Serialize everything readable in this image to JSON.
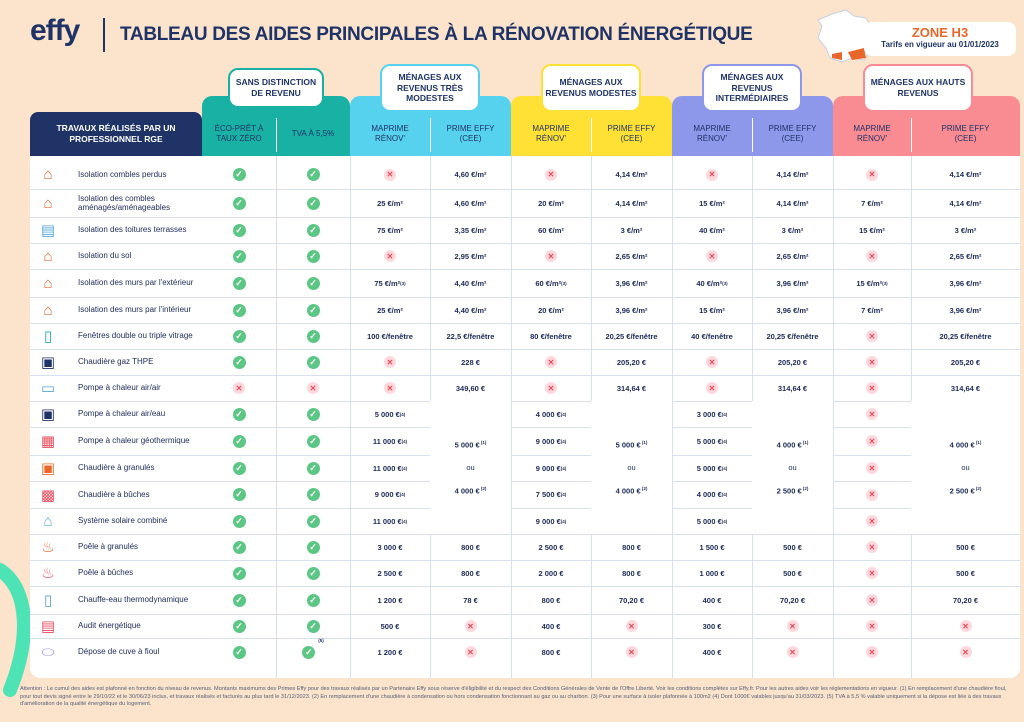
{
  "header": {
    "logo": "effy",
    "title": "TABLEAU DES AIDES PRINCIPALES À LA RÉNOVATION ÉNERGÉTIQUE",
    "zone": "ZONE H3",
    "zone_sub": "Tarifs en vigueur au 01/01/2023"
  },
  "colors": {
    "teal": "#19b1a4",
    "cyan": "#57d2ee",
    "yellow": "#ffe135",
    "purple": "#8d98ea",
    "pink": "#f98b92",
    "navy": "#1f3366",
    "check": "#5cc785",
    "cross": "#e94b5c"
  },
  "columns": {
    "works": "TRAVAUX RÉALISÉS PAR UN PROFESSIONNEL RGE",
    "groups": [
      "SANS DISTINCTION DE REVENU",
      "MÉNAGES AUX REVENUS TRÈS MODESTES",
      "MÉNAGES AUX REVENUS MODESTES",
      "MÉNAGES AUX REVENUS INTERMÉDIAIRES",
      "MÉNAGES AUX HAUTS REVENUS"
    ],
    "sub": [
      "ÉCO-PRÊT À TAUX ZÉRO",
      "TVA À 5,5%",
      "MAPRIME RÉNOV'",
      "PRIME EFFY (CEE)",
      "MAPRIME RÉNOV'",
      "PRIME EFFY (CEE)",
      "MAPRIME RÉNOV'",
      "PRIME EFFY (CEE)",
      "MAPRIME RÉNOV'",
      "PRIME EFFY (CEE)"
    ]
  },
  "rows": [
    {
      "label": "Isolation combles perdus",
      "icon": "attic-insulation-icon",
      "cells": [
        "ok",
        "ok",
        "no",
        "4,60 €/m²",
        "no",
        "4,14 €/m²",
        "no",
        "4,14 €/m²",
        "no",
        "4,14 €/m²"
      ]
    },
    {
      "label": "Isolation des combles aménagés/aménageables",
      "icon": "roof-insulation-icon",
      "cells": [
        "ok",
        "ok",
        "25 €/m²",
        "4,60 €/m²",
        "20 €/m²",
        "4,14 €/m²",
        "15 €/m²",
        "4,14 €/m²",
        "7 €/m²",
        "4,14 €/m²"
      ]
    },
    {
      "label": "Isolation des toitures terrasses",
      "icon": "flat-roof-icon",
      "cells": [
        "ok",
        "ok",
        "75 €/m²",
        "3,35 €/m²",
        "60 €/m²",
        "3 €/m²",
        "40 €/m²",
        "3 €/m²",
        "15 €/m²",
        "3 €/m²"
      ]
    },
    {
      "label": "Isolation du sol",
      "icon": "floor-insulation-icon",
      "cells": [
        "ok",
        "ok",
        "no",
        "2,95 €/m²",
        "no",
        "2,65 €/m²",
        "no",
        "2,65 €/m²",
        "no",
        "2,65 €/m²"
      ]
    },
    {
      "label": "Isolation des murs par l'extérieur",
      "icon": "exterior-wall-icon",
      "cells": [
        "ok",
        "ok",
        "75 €/m² (3)",
        "4,40 €/m²",
        "60 €/m² (3)",
        "3,96 €/m²",
        "40 €/m² (3)",
        "3,96 €/m²",
        "15 €/m² (3)",
        "3,96 €/m²"
      ]
    },
    {
      "label": "Isolation des murs par l'intérieur",
      "icon": "interior-wall-icon",
      "cells": [
        "ok",
        "ok",
        "25 €/m²",
        "4,40 €/m²",
        "20 €/m²",
        "3,96 €/m²",
        "15 €/m²",
        "3,96 €/m²",
        "7 €/m²",
        "3,96 €/m²"
      ]
    },
    {
      "label": "Fenêtres double ou triple vitrage",
      "icon": "window-icon",
      "cells": [
        "ok",
        "ok",
        "100 €/fenêtre",
        "22,5 €/fenêtre",
        "80 €/fenêtre",
        "20,25 €/fenêtre",
        "40 €/fenêtre",
        "20,25 €/fenêtre",
        "no",
        "20,25 €/fenêtre"
      ]
    },
    {
      "label": "Chaudière gaz THPE",
      "icon": "gas-boiler-icon",
      "cells": [
        "ok",
        "ok",
        "no",
        "228 €",
        "no",
        "205,20 €",
        "no",
        "205,20 €",
        "no",
        "205,20 €"
      ]
    },
    {
      "label": "Pompe à chaleur air/air",
      "icon": "air-heat-pump-icon",
      "cells": [
        "no",
        "no",
        "no",
        "349,60 €",
        "no",
        "314,64 €",
        "no",
        "314,64 €",
        "no",
        "314,64 €"
      ]
    },
    {
      "label": "Pompe à chaleur air/eau",
      "icon": "air-water-heat-pump-icon",
      "cells": [
        "ok",
        "ok",
        "5 000 € (4)",
        "",
        "4 000 € (4)",
        "",
        "3 000 € (4)",
        "",
        "no",
        ""
      ]
    },
    {
      "label": "Pompe à chaleur géothermique",
      "icon": "geothermal-heat-pump-icon",
      "cells": [
        "ok",
        "ok",
        "11 000 € (4)",
        "",
        "9 000 € (4)",
        "",
        "5 000 € (4)",
        "",
        "no",
        ""
      ]
    },
    {
      "label": "Chaudière à granulés",
      "icon": "pellet-boiler-icon",
      "cells": [
        "ok",
        "ok",
        "11 000 € (4)",
        "",
        "9 000 € (4)",
        "",
        "5 000 € (4)",
        "",
        "no",
        ""
      ]
    },
    {
      "label": "Chaudière à bûches",
      "icon": "log-boiler-icon",
      "cells": [
        "ok",
        "ok",
        "9 000 € (4)",
        "",
        "7 500 € (4)",
        "",
        "4 000 € (4)",
        "",
        "no",
        ""
      ]
    },
    {
      "label": "Système solaire combiné",
      "icon": "solar-system-icon",
      "cells": [
        "ok",
        "ok",
        "11 000 € (4)",
        "",
        "9 000 € (4)",
        "",
        "5 000 € (4)",
        "",
        "no",
        ""
      ]
    },
    {
      "label": "Poêle à granulés",
      "icon": "pellet-stove-icon",
      "cells": [
        "ok",
        "ok",
        "3 000 €",
        "800 €",
        "2 500 €",
        "800 €",
        "1 500 €",
        "500 €",
        "no",
        "500 €"
      ]
    },
    {
      "label": "Poêle à bûches",
      "icon": "log-stove-icon",
      "cells": [
        "ok",
        "ok",
        "2 500 €",
        "800 €",
        "2 000 €",
        "800 €",
        "1 000 €",
        "500 €",
        "no",
        "500 €"
      ]
    },
    {
      "label": "Chauffe-eau thermodynamique",
      "icon": "water-heater-icon",
      "cells": [
        "ok",
        "ok",
        "1 200 €",
        "78 €",
        "800 €",
        "70,20 €",
        "400 €",
        "70,20 €",
        "no",
        "70,20 €"
      ]
    },
    {
      "label": "Audit énergétique",
      "icon": "audit-icon",
      "cells": [
        "ok",
        "ok",
        "500 €",
        "no",
        "400 €",
        "no",
        "300 €",
        "no",
        "no",
        "no"
      ]
    },
    {
      "label": "Dépose de cuve à fioul",
      "icon": "oil-tank-icon",
      "cells": [
        "ok",
        "ok (5)",
        "1 200 €",
        "no",
        "800 €",
        "no",
        "400 €",
        "no",
        "no",
        "no"
      ]
    }
  ],
  "merged": {
    "a": "5 000 € (1)",
    "ou": "ou",
    "b": "4 000 € (2)",
    "c": "4 000 € (1)",
    "d": "2 500 € (2)"
  },
  "footnote": "Attention : Le cumul des aides est plafonné en fonction du niveau de revenus. Montants maximums des Primes Effy pour des travaux réalisés par un Partenaire Effy sous réserve d'éligibilité et du respect des Conditions Générales de Vente de l'Offre Liberté. Voir les conditions complètes sur Effy.fr. Pour les autres aides voir les réglementations en vigueur. (1) En remplacement d'une chaudière fioul, pour tout devis signé entre le 29/10/22 et le 30/06/23 inclus, et travaux réalisés et facturés au plus tard le 31/12/2023. (2) En remplacement d'une chaudière à condensation ou hors condensation fonctionnant au gaz ou au charbon. (3) Pour une surface à isoler plafonnée à 100m2 (4) Dont 1000€ valables jusqu'au 31/03/2023. (5) TVA à 5,5 % valable uniquement si la dépose est liée à des travaux d'amélioration de la qualité énergétique du logement."
}
